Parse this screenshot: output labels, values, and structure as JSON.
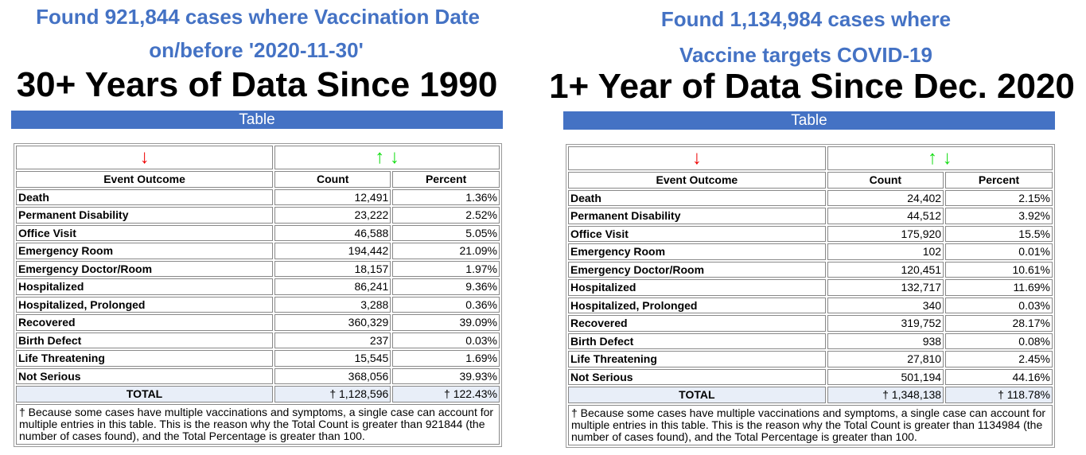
{
  "panels": [
    {
      "found_line1": "Found 921,844 cases where Vaccination Date",
      "found_line2": "on/before '2020-11-30'",
      "heading": "30+ Years of Data Since 1990",
      "table_label": "Table",
      "columns": [
        "Event Outcome",
        "Count",
        "Percent"
      ],
      "rows": [
        [
          "Death",
          "12,491",
          "1.36%"
        ],
        [
          "Permanent Disability",
          "23,222",
          "2.52%"
        ],
        [
          "Office Visit",
          "46,588",
          "5.05%"
        ],
        [
          "Emergency Room",
          "194,442",
          "21.09%"
        ],
        [
          "Emergency Doctor/Room",
          "18,157",
          "1.97%"
        ],
        [
          "Hospitalized",
          "86,241",
          "9.36%"
        ],
        [
          "Hospitalized, Prolonged",
          "3,288",
          "0.36%"
        ],
        [
          "Recovered",
          "360,329",
          "39.09%"
        ],
        [
          "Birth Defect",
          "237",
          "0.03%"
        ],
        [
          "Life Threatening",
          "15,545",
          "1.69%"
        ],
        [
          "Not Serious",
          "368,056",
          "39.93%"
        ]
      ],
      "total": [
        "TOTAL",
        "† 1,128,596",
        "† 122.43%"
      ],
      "note": "† Because some cases have multiple vaccinations and symptoms, a single case can account for multiple entries in this table. This is the reason why the Total Count is greater than 921844 (the number of cases found), and the Total Percentage is greater than 100."
    },
    {
      "found_line1": "Found 1,134,984 cases where",
      "found_line2": "Vaccine targets COVID-19",
      "heading": "1+ Year of Data Since Dec. 2020",
      "table_label": "Table",
      "columns": [
        "Event Outcome",
        "Count",
        "Percent"
      ],
      "rows": [
        [
          "Death",
          "24,402",
          "2.15%"
        ],
        [
          "Permanent Disability",
          "44,512",
          "3.92%"
        ],
        [
          "Office Visit",
          "175,920",
          "15.5%"
        ],
        [
          "Emergency Room",
          "102",
          "0.01%"
        ],
        [
          "Emergency Doctor/Room",
          "120,451",
          "10.61%"
        ],
        [
          "Hospitalized",
          "132,717",
          "11.69%"
        ],
        [
          "Hospitalized, Prolonged",
          "340",
          "0.03%"
        ],
        [
          "Recovered",
          "319,752",
          "28.17%"
        ],
        [
          "Birth Defect",
          "938",
          "0.08%"
        ],
        [
          "Life Threatening",
          "27,810",
          "2.45%"
        ],
        [
          "Not Serious",
          "501,194",
          "44.16%"
        ]
      ],
      "total": [
        "TOTAL",
        "† 1,348,138",
        "† 118.78%"
      ],
      "note": "† Because some cases have multiple vaccinations and symptoms, a single case can account for multiple entries in this table. This is the reason why the Total Count is greater than 1134984 (the number of cases found), and the Total Percentage is greater than 100."
    }
  ],
  "icons": {
    "sort_desc": "↓",
    "sort_asc": "↑"
  },
  "colors": {
    "title_blue": "#4472c4",
    "arrow_red": "#e00000",
    "arrow_green": "#11dd11"
  }
}
